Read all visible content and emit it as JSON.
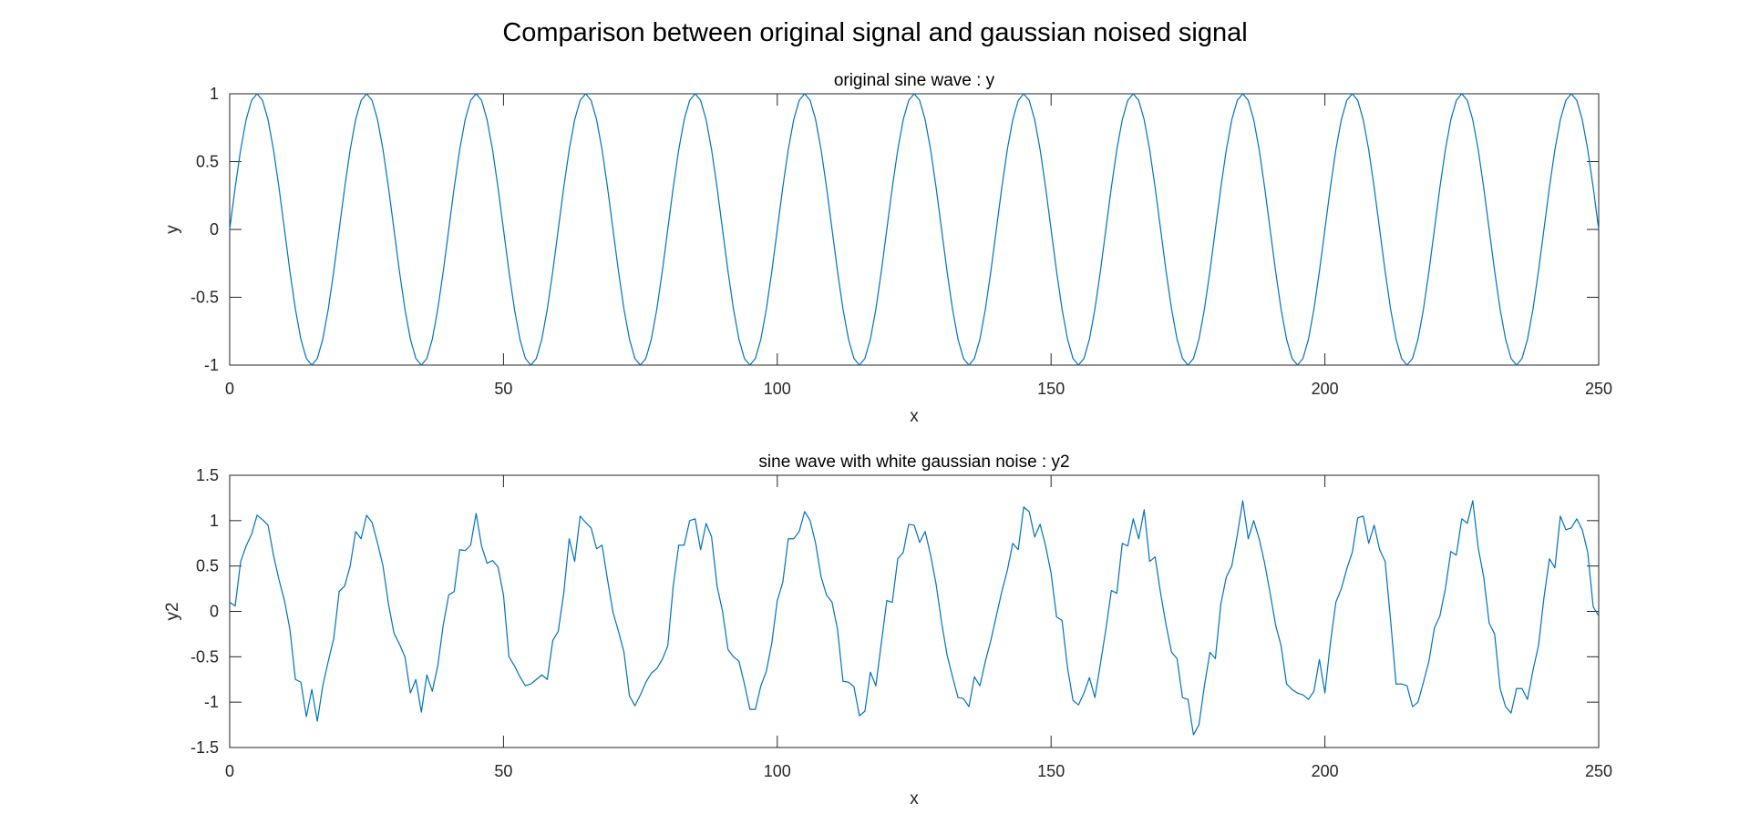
{
  "figure": {
    "title": "Comparison between original signal and gaussian noised signal"
  },
  "colors": {
    "line": "#0072BD",
    "axes": "#262626",
    "background": "#ffffff"
  },
  "chart_data": [
    {
      "type": "line",
      "title": "original sine wave : y",
      "xlabel": "x",
      "ylabel": "y",
      "xlim": [
        0,
        250
      ],
      "ylim": [
        -1,
        1
      ],
      "xticks": [
        0,
        50,
        100,
        150,
        200,
        250
      ],
      "xtick_labels": [
        "0",
        "50",
        "100",
        "150",
        "200",
        "250"
      ],
      "yticks": [
        -1,
        -0.5,
        0,
        0.5,
        1
      ],
      "ytick_labels": [
        "-1",
        "-0.5",
        "0",
        "0.5",
        "1"
      ],
      "grid": false,
      "series": [
        {
          "period": 20,
          "amplitude": 1,
          "x": [
            0,
            1,
            2,
            3,
            4,
            5,
            6,
            7,
            8,
            9,
            10,
            11,
            12,
            13,
            14,
            15,
            16,
            17,
            18,
            19,
            20,
            21,
            22,
            23,
            24,
            25,
            26,
            27,
            28,
            29,
            30,
            31,
            32,
            33,
            34,
            35,
            36,
            37,
            38,
            39,
            40,
            41,
            42,
            43,
            44,
            45,
            46,
            47,
            48,
            49,
            50,
            51,
            52,
            53,
            54,
            55,
            56,
            57,
            58,
            59,
            60,
            61,
            62,
            63,
            64,
            65,
            66,
            67,
            68,
            69,
            70,
            71,
            72,
            73,
            74,
            75,
            76,
            77,
            78,
            79,
            80,
            81,
            82,
            83,
            84,
            85,
            86,
            87,
            88,
            89,
            90,
            91,
            92,
            93,
            94,
            95,
            96,
            97,
            98,
            99,
            100,
            101,
            102,
            103,
            104,
            105,
            106,
            107,
            108,
            109,
            110,
            111,
            112,
            113,
            114,
            115,
            116,
            117,
            118,
            119,
            120,
            121,
            122,
            123,
            124,
            125,
            126,
            127,
            128,
            129,
            130,
            131,
            132,
            133,
            134,
            135,
            136,
            137,
            138,
            139,
            140,
            141,
            142,
            143,
            144,
            145,
            146,
            147,
            148,
            149,
            150,
            151,
            152,
            153,
            154,
            155,
            156,
            157,
            158,
            159,
            160,
            161,
            162,
            163,
            164,
            165,
            166,
            167,
            168,
            169,
            170,
            171,
            172,
            173,
            174,
            175,
            176,
            177,
            178,
            179,
            180,
            181,
            182,
            183,
            184,
            185,
            186,
            187,
            188,
            189,
            190,
            191,
            192,
            193,
            194,
            195,
            196,
            197,
            198,
            199,
            200,
            201,
            202,
            203,
            204,
            205,
            206,
            207,
            208,
            209,
            210,
            211,
            212,
            213,
            214,
            215,
            216,
            217,
            218,
            219,
            220,
            221,
            222,
            223,
            224,
            225,
            226,
            227,
            228,
            229,
            230,
            231,
            232,
            233,
            234,
            235,
            236,
            237,
            238,
            239,
            240,
            241,
            242,
            243,
            244,
            245,
            246,
            247,
            248,
            249,
            250
          ]
        }
      ]
    },
    {
      "type": "line",
      "title": "sine wave with white gaussian noise : y2",
      "xlabel": "x",
      "ylabel": "y2",
      "xlim": [
        0,
        250
      ],
      "ylim": [
        -1.5,
        1.5
      ],
      "xticks": [
        0,
        50,
        100,
        150,
        200,
        250
      ],
      "xtick_labels": [
        "0",
        "50",
        "100",
        "150",
        "200",
        "250"
      ],
      "yticks": [
        -1.5,
        -1,
        -0.5,
        0,
        0.5,
        1,
        1.5
      ],
      "ytick_labels": [
        "-1.5",
        "-1",
        "-0.5",
        "0",
        "0.5",
        "1",
        "1.5"
      ],
      "grid": false,
      "series": [
        {
          "x": [
            0,
            1,
            2,
            3,
            4,
            5,
            6,
            7,
            8,
            9,
            10,
            11,
            12,
            13,
            14,
            15,
            16,
            17,
            18,
            19,
            20,
            21,
            22,
            23,
            24,
            25,
            26,
            27,
            28,
            29,
            30,
            31,
            32,
            33,
            34,
            35,
            36,
            37,
            38,
            39,
            40,
            41,
            42,
            43,
            44,
            45,
            46,
            47,
            48,
            49,
            50,
            51,
            52,
            53,
            54,
            55,
            56,
            57,
            58,
            59,
            60,
            61,
            62,
            63,
            64,
            65,
            66,
            67,
            68,
            69,
            70,
            71,
            72,
            73,
            74,
            75,
            76,
            77,
            78,
            79,
            80,
            81,
            82,
            83,
            84,
            85,
            86,
            87,
            88,
            89,
            90,
            91,
            92,
            93,
            94,
            95,
            96,
            97,
            98,
            99,
            100,
            101,
            102,
            103,
            104,
            105,
            106,
            107,
            108,
            109,
            110,
            111,
            112,
            113,
            114,
            115,
            116,
            117,
            118,
            119,
            120,
            121,
            122,
            123,
            124,
            125,
            126,
            127,
            128,
            129,
            130,
            131,
            132,
            133,
            134,
            135,
            136,
            137,
            138,
            139,
            140,
            141,
            142,
            143,
            144,
            145,
            146,
            147,
            148,
            149,
            150,
            151,
            152,
            153,
            154,
            155,
            156,
            157,
            158,
            159,
            160,
            161,
            162,
            163,
            164,
            165,
            166,
            167,
            168,
            169,
            170,
            171,
            172,
            173,
            174,
            175,
            176,
            177,
            178,
            179,
            180,
            181,
            182,
            183,
            184,
            185,
            186,
            187,
            188,
            189,
            190,
            191,
            192,
            193,
            194,
            195,
            196,
            197,
            198,
            199,
            200,
            201,
            202,
            203,
            204,
            205,
            206,
            207,
            208,
            209,
            210,
            211,
            212,
            213,
            214,
            215,
            216,
            217,
            218,
            219,
            220,
            221,
            222,
            223,
            224,
            225,
            226,
            227,
            228,
            229,
            230,
            231,
            232,
            233,
            234,
            235,
            236,
            237,
            238,
            239,
            240,
            241,
            242,
            243,
            244,
            245,
            246,
            247,
            248,
            249,
            250
          ],
          "y": [
            0.1,
            0.06,
            0.55,
            0.72,
            0.85,
            1.06,
            1.01,
            0.95,
            0.62,
            0.35,
            0.12,
            -0.2,
            -0.75,
            -0.78,
            -1.16,
            -0.86,
            -1.21,
            -0.82,
            -0.55,
            -0.3,
            0.22,
            0.28,
            0.5,
            0.88,
            0.8,
            1.06,
            0.98,
            0.75,
            0.5,
            0.08,
            -0.24,
            -0.36,
            -0.5,
            -0.9,
            -0.75,
            -1.11,
            -0.7,
            -0.88,
            -0.6,
            -0.15,
            0.18,
            0.22,
            0.68,
            0.67,
            0.73,
            1.08,
            0.72,
            0.53,
            0.56,
            0.49,
            0.18,
            -0.5,
            -0.6,
            -0.72,
            -0.82,
            -0.8,
            -0.75,
            -0.7,
            -0.75,
            -0.32,
            -0.22,
            0.2,
            0.8,
            0.55,
            1.05,
            0.98,
            0.92,
            0.69,
            0.73,
            0.35,
            -0.01,
            -0.22,
            -0.45,
            -0.93,
            -1.04,
            -0.92,
            -0.78,
            -0.68,
            -0.63,
            -0.53,
            -0.38,
            0.28,
            0.73,
            0.73,
            1.0,
            1.02,
            0.68,
            0.97,
            0.82,
            0.28,
            0.0,
            -0.42,
            -0.5,
            -0.55,
            -0.8,
            -1.08,
            -1.08,
            -0.82,
            -0.66,
            -0.35,
            0.12,
            0.32,
            0.8,
            0.8,
            0.88,
            1.1,
            1.0,
            0.75,
            0.38,
            0.18,
            0.1,
            -0.2,
            -0.77,
            -0.78,
            -0.83,
            -1.15,
            -1.1,
            -0.67,
            -0.82,
            -0.35,
            0.12,
            0.1,
            0.58,
            0.65,
            0.96,
            0.95,
            0.76,
            0.88,
            0.62,
            0.3,
            -0.12,
            -0.48,
            -0.72,
            -0.95,
            -0.96,
            -1.05,
            -0.72,
            -0.82,
            -0.55,
            -0.32,
            -0.05,
            0.22,
            0.45,
            0.75,
            0.68,
            1.15,
            1.1,
            0.82,
            0.96,
            0.72,
            0.42,
            -0.06,
            -0.1,
            -0.62,
            -0.98,
            -1.03,
            -0.9,
            -0.73,
            -0.95,
            -0.58,
            -0.2,
            0.23,
            0.2,
            0.75,
            0.72,
            1.02,
            0.8,
            1.12,
            0.55,
            0.6,
            0.2,
            -0.15,
            -0.45,
            -0.52,
            -0.95,
            -0.97,
            -1.36,
            -1.25,
            -0.82,
            -0.45,
            -0.52,
            0.08,
            0.38,
            0.5,
            0.84,
            1.22,
            0.8,
            1.0,
            0.8,
            0.53,
            0.2,
            -0.15,
            -0.38,
            -0.8,
            -0.86,
            -0.9,
            -0.92,
            -0.97,
            -0.88,
            -0.53,
            -0.9,
            -0.35,
            0.1,
            0.25,
            0.47,
            0.65,
            1.03,
            1.05,
            0.75,
            0.95,
            0.68,
            0.55,
            -0.1,
            -0.8,
            -0.8,
            -0.82,
            -1.05,
            -1.0,
            -0.78,
            -0.55,
            -0.18,
            -0.05,
            0.25,
            0.66,
            0.62,
            1.02,
            0.97,
            1.22,
            0.7,
            0.38,
            -0.13,
            -0.25,
            -0.85,
            -1.05,
            -1.12,
            -0.85,
            -0.85,
            -0.97,
            -0.65,
            -0.38,
            0.15,
            0.58,
            0.48,
            1.05,
            0.9,
            0.92,
            1.02,
            0.9,
            0.65,
            0.05,
            -0.05
          ]
        }
      ]
    }
  ]
}
